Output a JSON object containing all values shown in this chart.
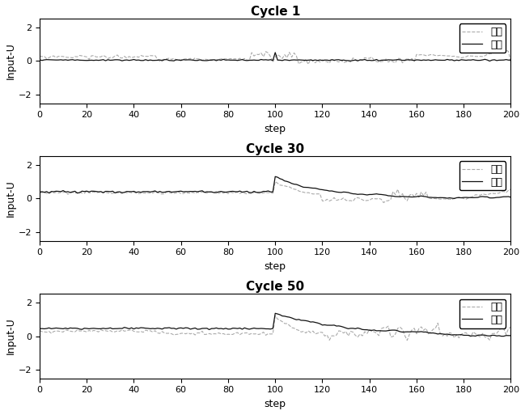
{
  "titles": [
    "Cycle 1",
    "Cycle 30",
    "Cycle 50"
  ],
  "xlabel": "step",
  "ylabel": "Input-U",
  "xlim": [
    0,
    200
  ],
  "ylim": [
    -2.5,
    2.5
  ],
  "yticks": [
    -2,
    0,
    2
  ],
  "xticks": [
    0,
    20,
    40,
    60,
    80,
    100,
    120,
    140,
    160,
    180,
    200
  ],
  "legend_labels": [
    "一维",
    "二维"
  ],
  "line1_color": "#aaaaaa",
  "line2_color": "#111111",
  "background_color": "#ffffff",
  "title_fontsize": 11,
  "label_fontsize": 9,
  "tick_fontsize": 8,
  "legend_fontsize": 9
}
